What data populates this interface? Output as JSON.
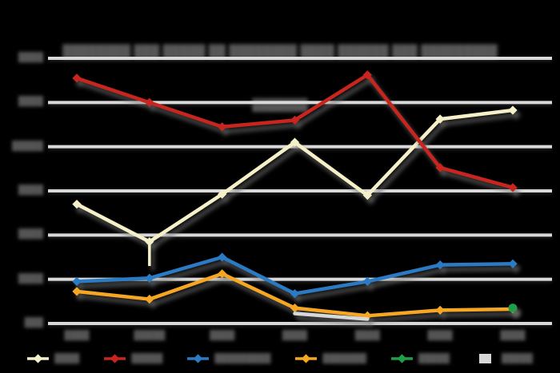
{
  "title": {
    "line1": "████████ ███ █████ ██ ████████ ████ ██████ ███ █████████",
    "line2": "███████"
  },
  "colors": {
    "background": "#000000",
    "gridline": "#d9d9d9",
    "blurred_text": "#575757",
    "series_cream": "#f6f0c9",
    "series_red": "#c9251f",
    "series_blue": "#2b7bc4",
    "series_orange": "#f5a623",
    "series_green": "#1fa048",
    "series_gray": "#d8d8d8"
  },
  "chart_data": {
    "type": "line",
    "title_blurred_line1": "████████ ███ █████ ██ ████████ ████ ██████ ███ █████████",
    "title_blurred_line2": "███████",
    "categories": [
      "████",
      "█████",
      "████",
      "████",
      "████",
      "████",
      "████"
    ],
    "y_tick_labels_top_to_bottom": [
      "████",
      "████",
      "█████",
      "████",
      "████",
      "████",
      "███"
    ],
    "y_tick_values_top_to_bottom": [
      1200,
      1000,
      800,
      600,
      400,
      200,
      0
    ],
    "ylim": [
      0,
      1200
    ],
    "grid": "horizontal",
    "legend_position": "bottom",
    "series": [
      {
        "name": "cream",
        "label": "████",
        "color": "#f6f0c9",
        "marker": "diamond",
        "values": [
          540,
          370,
          585,
          820,
          580,
          925,
          965
        ],
        "whisker": {
          "point": 1,
          "low_value": 260
        }
      },
      {
        "name": "red",
        "label": "█████",
        "color": "#c9251f",
        "marker": "diamond",
        "values": [
          1110,
          1000,
          890,
          920,
          1125,
          705,
          615
        ]
      },
      {
        "name": "blue",
        "label": "█████████",
        "color": "#2b7bc4",
        "marker": "diamond",
        "values": [
          190,
          205,
          300,
          135,
          190,
          265,
          270
        ]
      },
      {
        "name": "orange",
        "label": "███████",
        "color": "#f5a623",
        "marker": "diamond",
        "values": [
          145,
          110,
          225,
          70,
          35,
          60,
          65
        ]
      },
      {
        "name": "green",
        "label": "█████",
        "color": "#1fa048",
        "marker": "circle",
        "values": [
          null,
          null,
          null,
          null,
          null,
          null,
          70
        ]
      },
      {
        "name": "gray",
        "label": "█████",
        "color": "#d8d8d8",
        "marker": "none",
        "values": [
          null,
          null,
          null,
          45,
          20,
          null,
          null
        ]
      }
    ]
  }
}
